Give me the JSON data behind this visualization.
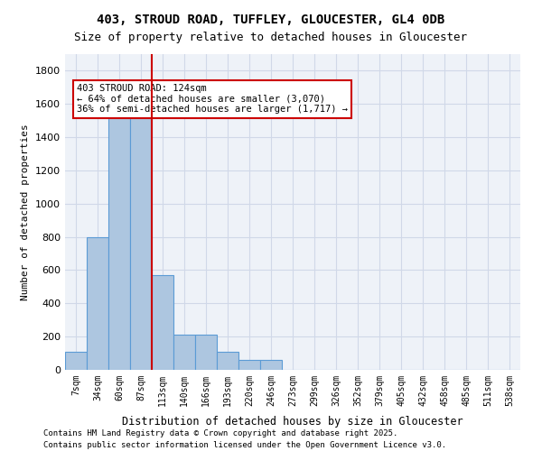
{
  "title_line1": "403, STROUD ROAD, TUFFLEY, GLOUCESTER, GL4 0DB",
  "title_line2": "Size of property relative to detached houses in Gloucester",
  "xlabel": "Distribution of detached houses by size in Gloucester",
  "ylabel": "Number of detached properties",
  "categories": [
    "7sqm",
    "34sqm",
    "60sqm",
    "87sqm",
    "113sqm",
    "140sqm",
    "166sqm",
    "193sqm",
    "220sqm",
    "246sqm",
    "273sqm",
    "299sqm",
    "326sqm",
    "352sqm",
    "379sqm",
    "405sqm",
    "432sqm",
    "458sqm",
    "485sqm",
    "511sqm",
    "538sqm"
  ],
  "values": [
    110,
    800,
    1530,
    1530,
    570,
    210,
    210,
    110,
    60,
    60,
    0,
    0,
    0,
    0,
    0,
    0,
    0,
    0,
    0,
    0,
    0
  ],
  "bar_color": "#adc6e0",
  "bar_edge_color": "#5b9bd5",
  "grid_color": "#d0d8e8",
  "background_color": "#eef2f8",
  "vline_x": 4,
  "vline_color": "#cc0000",
  "annotation_text": "403 STROUD ROAD: 124sqm\n← 64% of detached houses are smaller (3,070)\n36% of semi-detached houses are larger (1,717) →",
  "annotation_box_color": "#ffffff",
  "annotation_box_edge": "#cc0000",
  "footnote1": "Contains HM Land Registry data © Crown copyright and database right 2025.",
  "footnote2": "Contains public sector information licensed under the Open Government Licence v3.0.",
  "ylim": [
    0,
    1900
  ],
  "yticks": [
    0,
    200,
    400,
    600,
    800,
    1000,
    1200,
    1400,
    1600,
    1800
  ]
}
